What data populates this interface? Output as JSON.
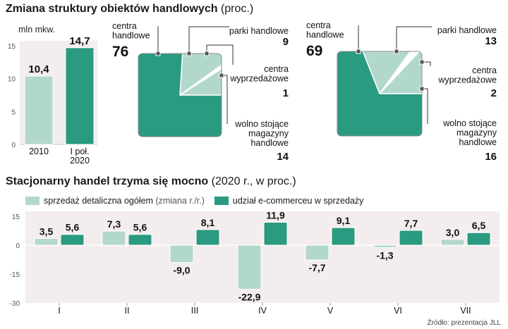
{
  "title1": {
    "main": "Zmiana struktury obiektów handlowych",
    "sub": "(proc.)"
  },
  "title2": {
    "main": "Stacjonarny handel trzyma się mocno",
    "sub": "(2020 r., w proc.)"
  },
  "source": "Źródło: prezentacja JLL",
  "legend": {
    "s1_main": "sprzedaż detaliczna ogółem",
    "s1_sub": "(zmiana r./r.)",
    "s2": "udział e-commerceu w sprzedaży"
  },
  "colors": {
    "light": "#b2d8cb",
    "dark": "#2a9a80",
    "bg": "#f6eaea",
    "panel_bg": "#f4eded",
    "leader": "#333333"
  },
  "chart_data": [
    {
      "type": "bar",
      "ylabel": "mln mkw.",
      "ylim": [
        0,
        15
      ],
      "yticks": [
        "15",
        "10",
        "5",
        "0"
      ],
      "categories": [
        "2010",
        "I poł. 2020"
      ],
      "category_lines": [
        [
          "2010"
        ],
        [
          "I poł.",
          "2020"
        ]
      ],
      "values": [
        10.4,
        14.7
      ],
      "value_labels": [
        "10,4",
        "14,7"
      ],
      "colors": [
        "#b2d8cb",
        "#2a9a80"
      ]
    },
    {
      "type": "pie",
      "period": "2010",
      "slices": [
        {
          "label_lines": [
            "centra",
            "handlowe"
          ],
          "value": 76,
          "value_label": "76",
          "color": "#2a9a80"
        },
        {
          "label_lines": [
            "parki handlowe"
          ],
          "value": 9,
          "value_label": "9",
          "color": "#b2d8cb"
        },
        {
          "label_lines": [
            "centra",
            "wyprzedażowe"
          ],
          "value": 1,
          "value_label": "1",
          "color": "#ffffff"
        },
        {
          "label_lines": [
            "wolno stojące",
            "magazyny",
            "handlowe"
          ],
          "value": 14,
          "value_label": "14",
          "color": "#b2d8cb"
        }
      ]
    },
    {
      "type": "pie",
      "period": "I poł. 2020",
      "slices": [
        {
          "label_lines": [
            "centra",
            "handlowe"
          ],
          "value": 69,
          "value_label": "69",
          "color": "#2a9a80"
        },
        {
          "label_lines": [
            "parki handlowe"
          ],
          "value": 13,
          "value_label": "13",
          "color": "#b2d8cb"
        },
        {
          "label_lines": [
            "centra",
            "wyprzedażowe"
          ],
          "value": 2,
          "value_label": "2",
          "color": "#ffffff"
        },
        {
          "label_lines": [
            "wolno stojące",
            "magazyny",
            "handlowe"
          ],
          "value": 16,
          "value_label": "16",
          "color": "#b2d8cb"
        }
      ]
    },
    {
      "type": "bar",
      "ylim": [
        -30,
        15
      ],
      "yticks": [
        "15",
        "0",
        "-15",
        "-30"
      ],
      "categories": [
        "I",
        "II",
        "III",
        "IV",
        "V",
        "VI",
        "VII"
      ],
      "series": [
        {
          "name": "sprzedaż detaliczna ogółem (zmiana r./r.)",
          "values": [
            3.5,
            7.3,
            -9.0,
            -22.9,
            -7.7,
            -1.3,
            3.0
          ],
          "labels": [
            "3,5",
            "7,3",
            "-9,0",
            "-22,9",
            "-7,7",
            "-1,3",
            "3,0"
          ],
          "color": "#b2d8cb"
        },
        {
          "name": "udział e-commerceu w sprzedaży",
          "values": [
            5.6,
            5.6,
            8.1,
            11.9,
            9.1,
            7.7,
            6.5
          ],
          "labels": [
            "5,6",
            "5,6",
            "8,1",
            "11,9",
            "9,1",
            "7,7",
            "6,5"
          ],
          "color": "#2a9a80"
        }
      ]
    }
  ]
}
